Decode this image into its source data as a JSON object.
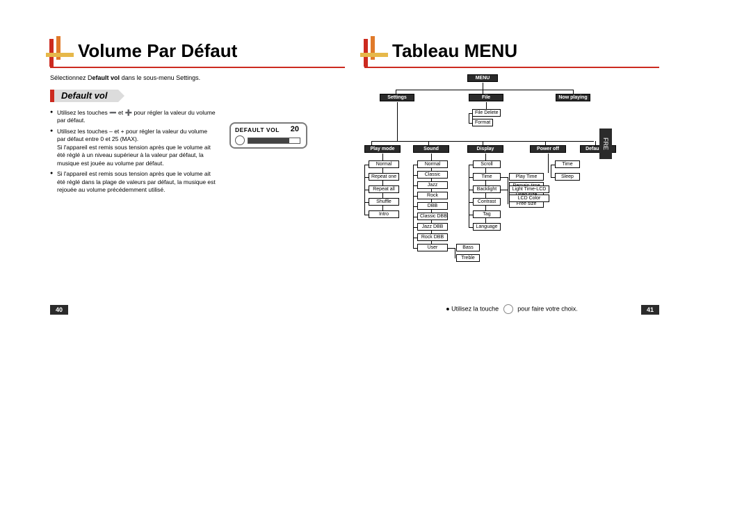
{
  "colors": {
    "accent_red": "#cc2a1f",
    "accent_orange": "#e07a2a",
    "accent_yellow": "#e6b84a",
    "dark_bar": "#2b2b2b",
    "subbar_body": "#dcdcdc",
    "subbar_tail": "#dcdcdc",
    "node_dark": "#2b2b2b",
    "page_num_bg": "#2b2b2b"
  },
  "left": {
    "title": "Volume Par Défaut",
    "intro_pre": "Sélectionnez D",
    "intro_bold": "efault vol",
    "intro_post": " dans le sous-menu Settings.",
    "sub_label": "Default vol",
    "bullets": [
      "Utilisez les touches ➖ et ➕ pour régler la valeur du volume par défaut.",
      "Utilisez les touches – et + pour régler la valeur du volume par défaut entre 0 et 25 (MAX).\nSi l'appareil est remis sous tension après que le volume ait été réglé à un niveau supérieur à la valeur par défaut, la musique est jouée au volume par défaut.",
      "Si l'appareil est remis sous tension après que le volume ait été réglé dans la plage de valeurs par défaut, la musique est rejouée au volume précédemment utilisé."
    ],
    "lcd_label": "DEFAULT VOL",
    "lcd_value": "20",
    "lcd_fill_pct": 80,
    "page_number": "40"
  },
  "right": {
    "title": "Tableau MENU",
    "footer_pre": "● Utilisez la touche",
    "footer_post": "pour faire votre choix.",
    "page_number": "41",
    "side_tab": "FRE",
    "tree": {
      "root": "MENU",
      "row1": [
        "Settings",
        "File",
        "Now playing"
      ],
      "file_children": [
        "File Delete",
        "Format"
      ],
      "row2": [
        "Play mode",
        "Sound",
        "Display",
        "Power off",
        "Default vol"
      ],
      "playmode": [
        "Normal",
        "Repeat one",
        "Repeat all",
        "Shuffle",
        "Intro"
      ],
      "sound": [
        "Normal",
        "Classic",
        "Jazz",
        "Rock",
        "DBB",
        "Classic DBB",
        "Jazz DBB",
        "Rock DBB",
        "User"
      ],
      "user_children": [
        "Bass",
        "Treble"
      ],
      "display": [
        "Scroll",
        "Time",
        "Backlight",
        "Contrast",
        "Tag",
        "Language"
      ],
      "time_children": [
        "Play Time",
        "Remain time",
        "Used size",
        "Free size"
      ],
      "backlight_children": [
        "Light Time-LCD",
        "LCD Color"
      ],
      "poweroff": [
        "Time",
        "Sleep"
      ]
    }
  }
}
